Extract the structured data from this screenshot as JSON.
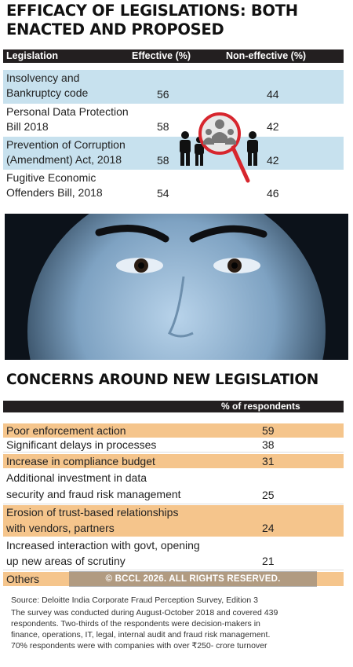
{
  "legislation": {
    "title_line1": "EFFICACY OF LEGISLATIONS: BOTH",
    "title_line2": "ENACTED AND PROPOSED",
    "headers": {
      "legislation": "Legislation",
      "effective": "Effective (%)",
      "non_effective": "Non-effective (%)"
    },
    "rows": [
      {
        "line1": "Insolvency and",
        "line2": "Bankruptcy code",
        "effective": "56",
        "non_effective": "44"
      },
      {
        "line1": "Personal Data Protection",
        "line2": "Bill 2018",
        "effective": "58",
        "non_effective": "42"
      },
      {
        "line1": "Prevention of Corruption",
        "line2": "(Amendment) Act, 2018",
        "effective": "58",
        "non_effective": "42"
      },
      {
        "line1": "Fugitive Economic",
        "line2": "Offenders Bill, 2018",
        "effective": "54",
        "non_effective": "46"
      }
    ]
  },
  "concerns": {
    "title": "CONCERNS AROUND NEW LEGISLATION",
    "header": "% of respondents",
    "rows": [
      {
        "line1": "Poor enforcement action",
        "value": "59"
      },
      {
        "line1": "Significant delays in processes",
        "value": "38"
      },
      {
        "line1": "Increase in compliance budget",
        "value": "31"
      },
      {
        "line1": "Additional investment in data",
        "line2": "security and fraud risk management",
        "value": "25"
      },
      {
        "line1": "Erosion of trust-based relationships",
        "line2": "with vendors, partners",
        "value": "24"
      },
      {
        "line1": "Increased interaction with govt, opening",
        "line2": "up new areas of scrutiny",
        "value": "21"
      },
      {
        "line1": "Others",
        "value": ""
      }
    ]
  },
  "watermark": "© BCCL 2026. ALL RIGHTS RESERVED.",
  "source": "Source: Deloitte India Corporate Fraud Perception Survey, Edition 3",
  "footnote": {
    "line1": "The survey was conducted during August-October 2018 and covered 439",
    "line2": "respondents. Two-thirds of the respondents were decision-makers in",
    "line3": "finance, operations, IT, legal, internal audit and fraud risk management.",
    "line4": "70% respondents were with companies with over ₹250- crore turnover"
  },
  "colors": {
    "table_blue": "#c7e1ee",
    "concern_orange": "#f5c58c",
    "header_dark": "#231f20",
    "magnifier_red": "#d7262e"
  },
  "icons": {
    "magnifier": "magnifier-people-icon",
    "people": "person-icon"
  }
}
